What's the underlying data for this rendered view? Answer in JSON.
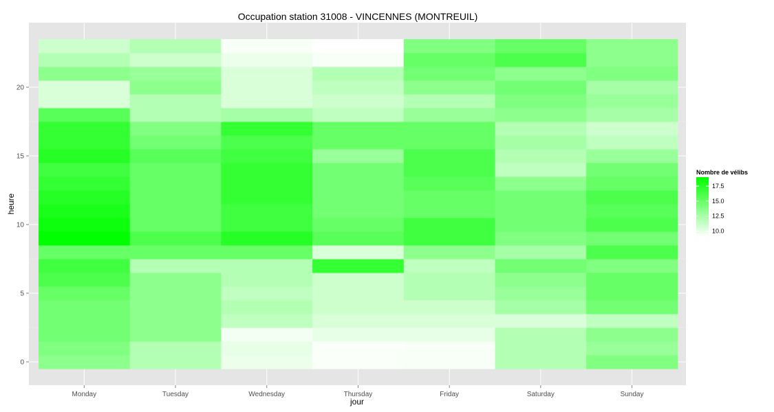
{
  "chart_data": {
    "type": "heatmap",
    "title": "Occupation station 31008 - VINCENNES (MONTREUIL)",
    "xlabel": "jour",
    "ylabel": "heure",
    "x": [
      "Monday",
      "Tuesday",
      "Wednesday",
      "Thursday",
      "Friday",
      "Saturday",
      "Sunday"
    ],
    "y": [
      0,
      1,
      2,
      3,
      4,
      5,
      6,
      7,
      8,
      9,
      10,
      11,
      12,
      13,
      14,
      15,
      16,
      17,
      18,
      19,
      20,
      21,
      22,
      23
    ],
    "y_ticks": [
      0,
      5,
      10,
      15,
      20
    ],
    "ylim": [
      -0.5,
      23.5
    ],
    "grid": true,
    "legend": {
      "title": "Nombre de vélibs",
      "position": "right",
      "ticks": [
        10.0,
        12.5,
        15.0,
        17.5
      ],
      "tick_labels": [
        "10.0",
        "12.5",
        "15.0",
        "17.5"
      ],
      "min": 9.0,
      "max": 19.0,
      "low_color": "#ffffff",
      "high_color": "#00ff00"
    },
    "values": [
      [
        13.5,
        12.0,
        9.8,
        9.2,
        9.3,
        12.0,
        14.0
      ],
      [
        14.0,
        12.0,
        10.0,
        9.2,
        9.3,
        12.0,
        13.0
      ],
      [
        14.5,
        13.5,
        9.5,
        10.0,
        10.0,
        12.0,
        13.5
      ],
      [
        14.5,
        13.5,
        11.5,
        10.5,
        10.5,
        10.5,
        11.5
      ],
      [
        14.5,
        13.5,
        12.0,
        11.0,
        11.0,
        12.5,
        14.5
      ],
      [
        15.0,
        13.5,
        11.5,
        11.0,
        12.0,
        13.0,
        15.0
      ],
      [
        16.0,
        13.5,
        12.0,
        11.0,
        12.0,
        13.5,
        15.0
      ],
      [
        16.5,
        12.0,
        12.0,
        17.0,
        11.5,
        14.5,
        14.0
      ],
      [
        15.0,
        15.0,
        15.0,
        10.5,
        13.5,
        12.5,
        16.0
      ],
      [
        19.0,
        16.0,
        17.5,
        15.5,
        16.5,
        14.0,
        14.5
      ],
      [
        18.5,
        15.0,
        16.5,
        15.0,
        16.5,
        14.5,
        16.0
      ],
      [
        18.0,
        15.0,
        16.5,
        14.5,
        15.0,
        14.5,
        15.5
      ],
      [
        17.5,
        15.0,
        17.0,
        14.5,
        15.0,
        14.5,
        16.0
      ],
      [
        17.0,
        15.0,
        17.0,
        14.5,
        15.5,
        13.5,
        15.0
      ],
      [
        16.5,
        15.0,
        17.0,
        14.5,
        16.0,
        11.5,
        14.5
      ],
      [
        17.5,
        15.5,
        16.5,
        13.0,
        16.0,
        12.0,
        13.0
      ],
      [
        17.0,
        14.5,
        16.0,
        15.0,
        15.0,
        12.5,
        11.5
      ],
      [
        17.0,
        14.0,
        17.0,
        15.0,
        15.0,
        12.0,
        11.0
      ],
      [
        15.5,
        12.0,
        12.5,
        11.5,
        13.0,
        13.5,
        12.5
      ],
      [
        10.5,
        12.0,
        10.5,
        11.0,
        12.0,
        14.0,
        13.0
      ],
      [
        10.5,
        13.5,
        10.5,
        11.5,
        13.5,
        14.5,
        12.5
      ],
      [
        13.5,
        13.0,
        10.5,
        12.0,
        14.5,
        13.5,
        14.0
      ],
      [
        12.0,
        11.0,
        9.8,
        9.3,
        15.0,
        16.0,
        13.5
      ],
      [
        11.0,
        12.0,
        9.3,
        9.0,
        14.0,
        15.0,
        13.5
      ]
    ]
  }
}
